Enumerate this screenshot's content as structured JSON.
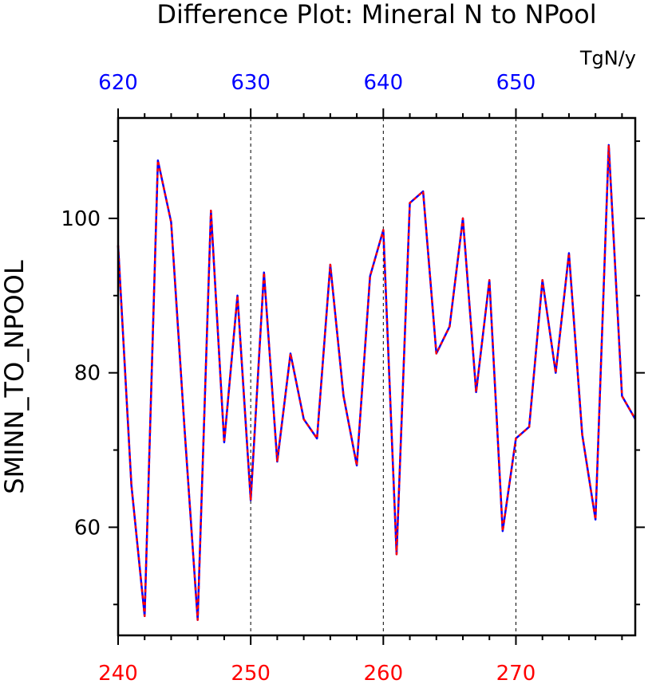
{
  "chart_data": {
    "type": "line",
    "title": "Difference Plot: Mineral N to NPool",
    "units": "TgN/y",
    "ylabel": "SMINN_TO_NPOOL",
    "xlabel": "",
    "xlim": [
      240,
      279
    ],
    "ylim": [
      46,
      113
    ],
    "y_major_ticks": [
      60,
      80,
      100
    ],
    "y_minor_ticks": [
      50,
      70,
      90,
      110
    ],
    "x_bottom_ticks": [
      240,
      250,
      260,
      270
    ],
    "x_top_ticks": [
      620,
      630,
      640,
      650
    ],
    "x_top_offset": 380,
    "x_minor_step": 2,
    "vertical_gridlines": [
      250,
      260,
      270
    ],
    "grid": "dashed vertical at major x ticks",
    "colors": {
      "series_a": "#0000ff",
      "series_b": "#ff0000",
      "bottom_axis": "#ff0000",
      "top_axis": "#0000ff"
    },
    "x": [
      240,
      241,
      242,
      243,
      244,
      245,
      246,
      247,
      248,
      249,
      250,
      251,
      252,
      253,
      254,
      255,
      256,
      257,
      258,
      259,
      260,
      261,
      262,
      263,
      264,
      265,
      266,
      267,
      268,
      269,
      270,
      271,
      272,
      273,
      274,
      275,
      276,
      277,
      278,
      279
    ],
    "series": [
      {
        "values": [
          96.5,
          65.5,
          48.5,
          107.5,
          99.5,
          73.0,
          48.0,
          101.0,
          71.0,
          90.0,
          63.5,
          93.0,
          68.5,
          82.5,
          74.0,
          71.5,
          94.0,
          77.0,
          68.0,
          92.5,
          98.5,
          56.5,
          102.0,
          103.5,
          82.5,
          86.0,
          100.0,
          77.5,
          92.0,
          59.5,
          71.5,
          73.0,
          92.0,
          80.0,
          95.5,
          72.0,
          61.0,
          109.5,
          77.0,
          74.0
        ]
      },
      {
        "values": [
          96.5,
          65.5,
          48.5,
          107.5,
          99.5,
          73.0,
          48.0,
          101.0,
          71.0,
          90.0,
          63.5,
          93.0,
          68.5,
          82.5,
          74.0,
          71.5,
          94.0,
          77.0,
          68.0,
          92.5,
          98.5,
          56.5,
          102.0,
          103.5,
          82.5,
          86.0,
          100.0,
          77.5,
          92.0,
          59.5,
          71.5,
          73.0,
          92.0,
          80.0,
          95.5,
          72.0,
          61.0,
          109.5,
          77.0,
          74.0
        ]
      }
    ]
  }
}
